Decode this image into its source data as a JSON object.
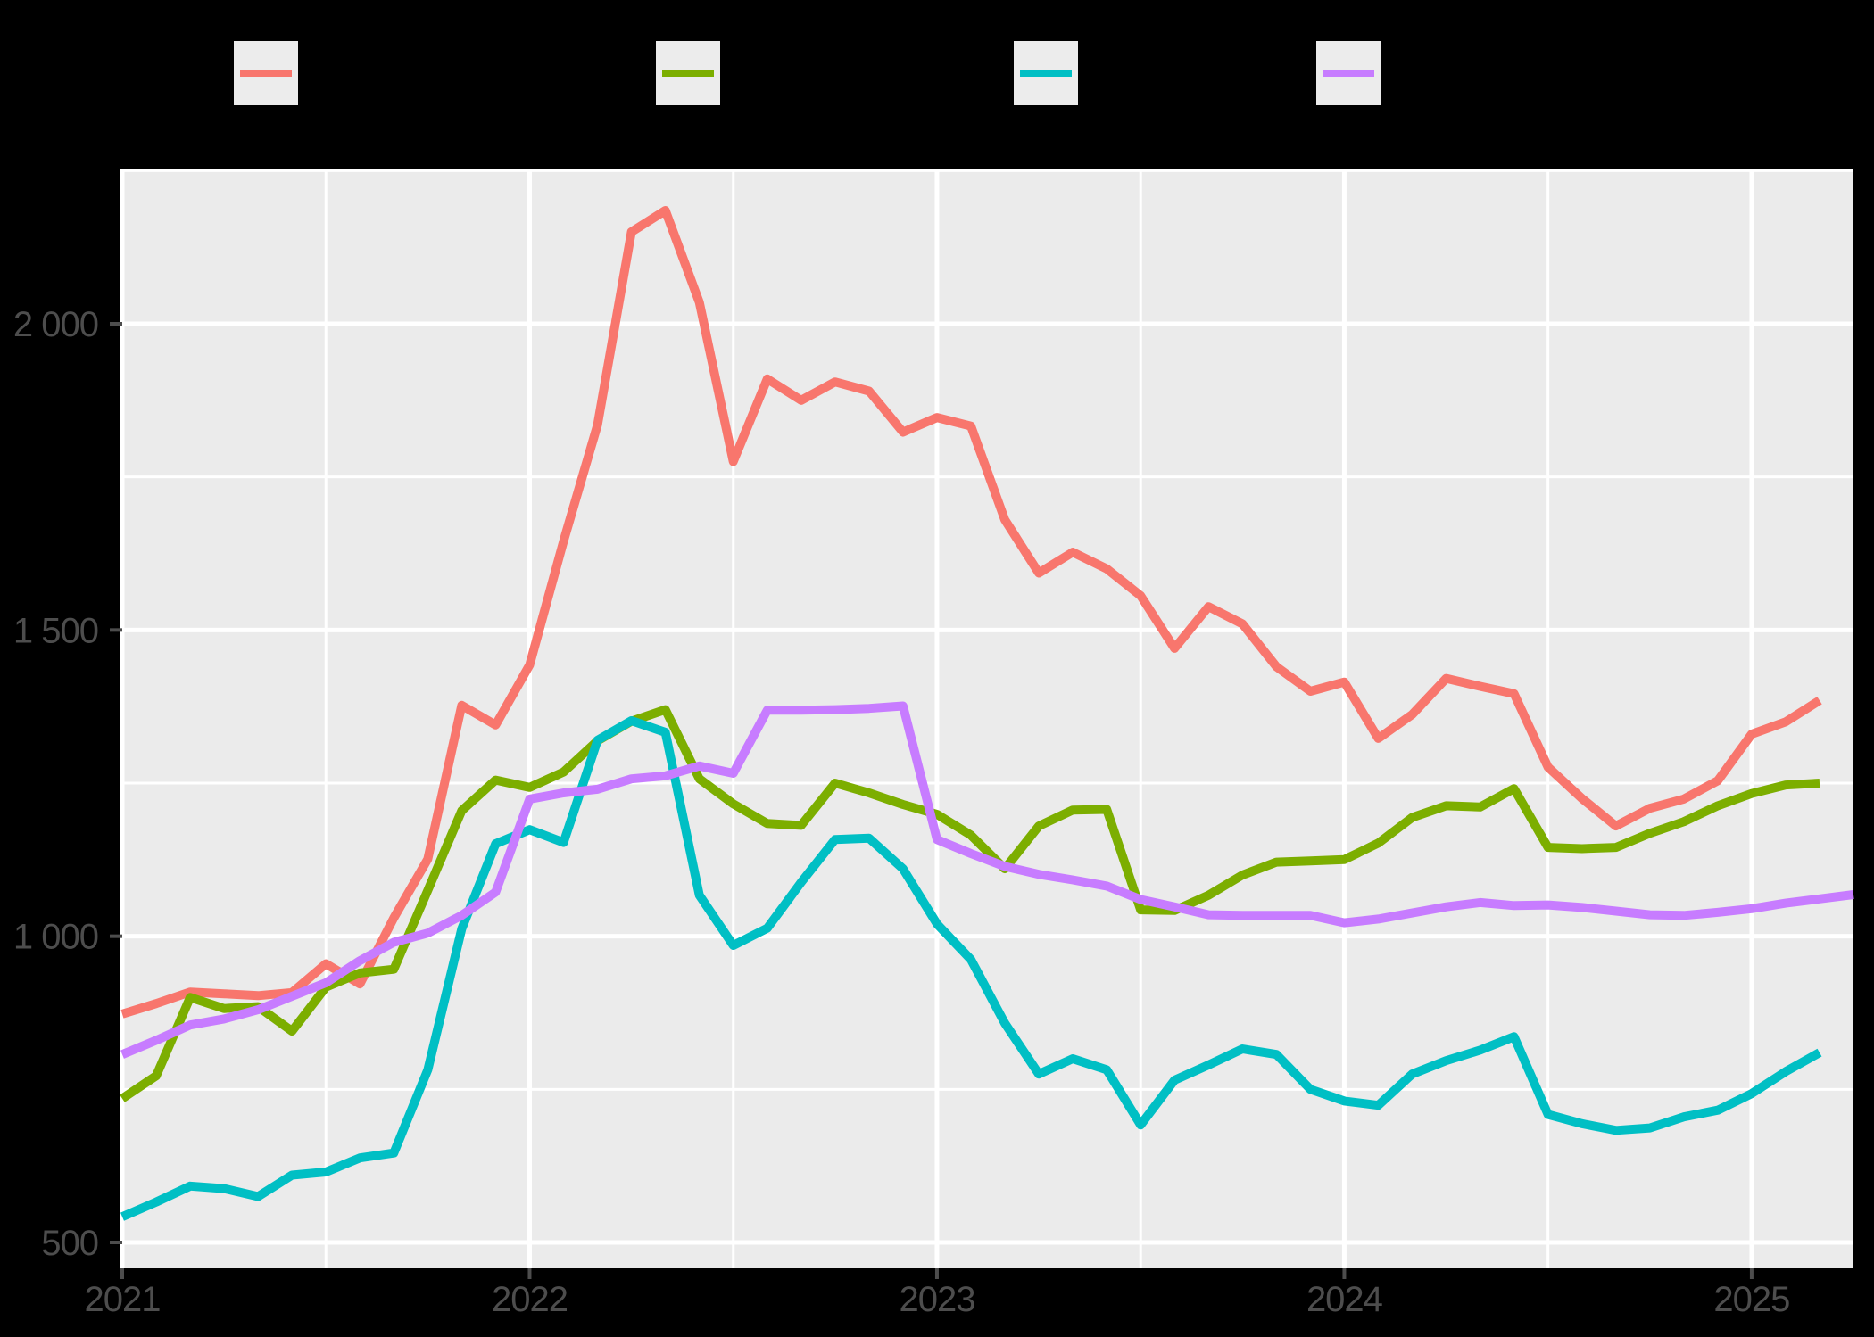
{
  "page": {
    "background": "#000000"
  },
  "legend": {
    "key_background": "#ECECEC",
    "keys": [
      {
        "id": "series-red",
        "color": "#F8766D",
        "label": ""
      },
      {
        "id": "series-green",
        "color": "#7CAE00",
        "label": ""
      },
      {
        "id": "series-cyan",
        "color": "#00BFC4",
        "label": ""
      },
      {
        "id": "series-purple",
        "color": "#C77CFF",
        "label": ""
      }
    ]
  },
  "chart_data": {
    "type": "line",
    "title": "",
    "xlabel": "",
    "ylabel": "",
    "panel_background": "#EBEBEB",
    "grid_color": "#FFFFFF",
    "axis_text_color": "#4D4D4D",
    "x_start": "2021-01",
    "x_step": "1 month",
    "x_axis": {
      "tick_labels": [
        "2021",
        "2022",
        "2023",
        "2024",
        "2025"
      ],
      "tick_month_index": [
        0,
        12,
        24,
        36,
        48
      ],
      "minor_month_index": [
        6,
        18,
        30,
        42
      ]
    },
    "y_axis": {
      "ticks": [
        {
          "value": 500,
          "label": "500"
        },
        {
          "value": 1000,
          "label": "1 000"
        },
        {
          "value": 1500,
          "label": "1 500"
        },
        {
          "value": 2000,
          "label": "2 000"
        }
      ],
      "minor": [
        750,
        1250,
        1750,
        2250
      ],
      "range": [
        458,
        2252
      ]
    },
    "series": [
      {
        "id": "red",
        "color": "#F8766D",
        "values": [
          873,
          890,
          909,
          906,
          903,
          908,
          955,
          922,
          1030,
          1126,
          1377,
          1345,
          1443,
          1645,
          1835,
          2150,
          2185,
          2035,
          1775,
          1910,
          1875,
          1905,
          1890,
          1823,
          1847,
          1833,
          1680,
          1593,
          1627,
          1600,
          1556,
          1470,
          1538,
          1510,
          1440,
          1400,
          1415,
          1323,
          1362,
          1421,
          1408,
          1396,
          1276,
          1225,
          1180,
          1209,
          1224,
          1254,
          1330,
          1350,
          1385
        ]
      },
      {
        "id": "green",
        "color": "#7CAE00",
        "values": [
          735,
          772,
          900,
          882,
          885,
          845,
          917,
          940,
          946,
          1075,
          1205,
          1255,
          1243,
          1268,
          1319,
          1351,
          1370,
          1257,
          1216,
          1184,
          1181,
          1250,
          1234,
          1215,
          1199,
          1165,
          1110,
          1180,
          1206,
          1207,
          1043,
          1042,
          1067,
          1100,
          1121,
          1123,
          1125,
          1152,
          1194,
          1213,
          1211,
          1241,
          1145,
          1143,
          1145,
          1168,
          1187,
          1213,
          1233,
          1247,
          1250
        ]
      },
      {
        "id": "cyan",
        "color": "#00BFC4",
        "values": [
          542,
          566,
          592,
          588,
          575,
          610,
          615,
          638,
          646,
          782,
          1012,
          1151,
          1174,
          1153,
          1320,
          1352,
          1333,
          1067,
          985,
          1013,
          1088,
          1158,
          1160,
          1110,
          1020,
          962,
          858,
          775,
          800,
          782,
          692,
          765,
          790,
          816,
          807,
          750,
          731,
          724,
          775,
          797,
          814,
          836,
          709,
          694,
          683,
          687,
          705,
          716,
          743,
          779,
          810
        ]
      },
      {
        "id": "purple",
        "color": "#C77CFF",
        "values": [
          807,
          830,
          855,
          865,
          880,
          902,
          924,
          960,
          990,
          1005,
          1034,
          1072,
          1224,
          1234,
          1240,
          1257,
          1262,
          1278,
          1266,
          1369,
          1369,
          1370,
          1372,
          1376,
          1158,
          1135,
          1114,
          1101,
          1092,
          1082,
          1060,
          1048,
          1035,
          1034,
          1034,
          1034,
          1022,
          1028,
          1038,
          1048,
          1055,
          1050,
          1051,
          1047,
          1041,
          1035,
          1034,
          1039,
          1045,
          1054,
          1061,
          1068
        ]
      }
    ]
  }
}
